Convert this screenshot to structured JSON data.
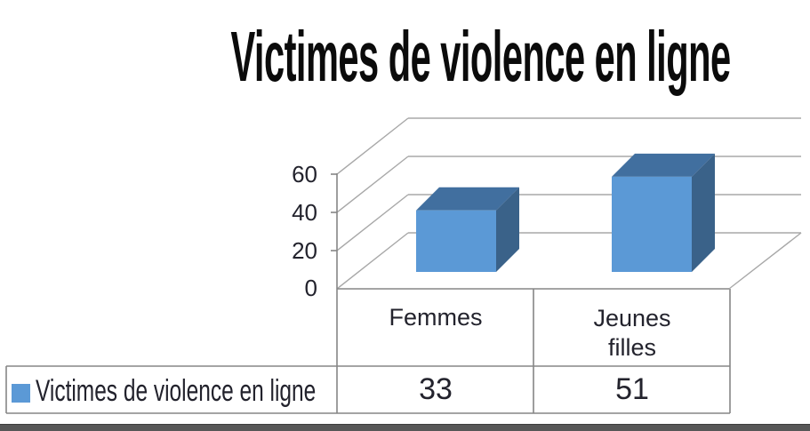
{
  "title": "Victimes de violence en ligne",
  "chart_data": {
    "type": "bar",
    "variant": "3d-column",
    "title": "Victimes de violence en ligne",
    "categories": [
      "Femmes",
      "Jeunes filles"
    ],
    "series": [
      {
        "name": "Victimes de violence en ligne",
        "values": [
          33,
          51
        ]
      }
    ],
    "yticks": [
      60,
      40,
      20,
      0
    ],
    "ylim": [
      0,
      60
    ],
    "grid": true,
    "legend_position": "bottom-left of attached data table",
    "data_table": true
  },
  "table": {
    "category_lines": [
      [
        "Femmes"
      ],
      [
        "Jeunes",
        "filles"
      ]
    ],
    "row_label": "Victimes de violence en ligne",
    "values": [
      "33",
      "51"
    ]
  },
  "colors": {
    "bar_front": "#5b99d6",
    "bar_top": "#416f9f",
    "bar_side": "#3a6289",
    "legend_marker": "#5b99d6",
    "gridline": "#a8a8a8",
    "axis_table_border": "#868686",
    "text": "#23232d",
    "title_text": "#0b0b0b",
    "bottom_rule": "#575757"
  }
}
